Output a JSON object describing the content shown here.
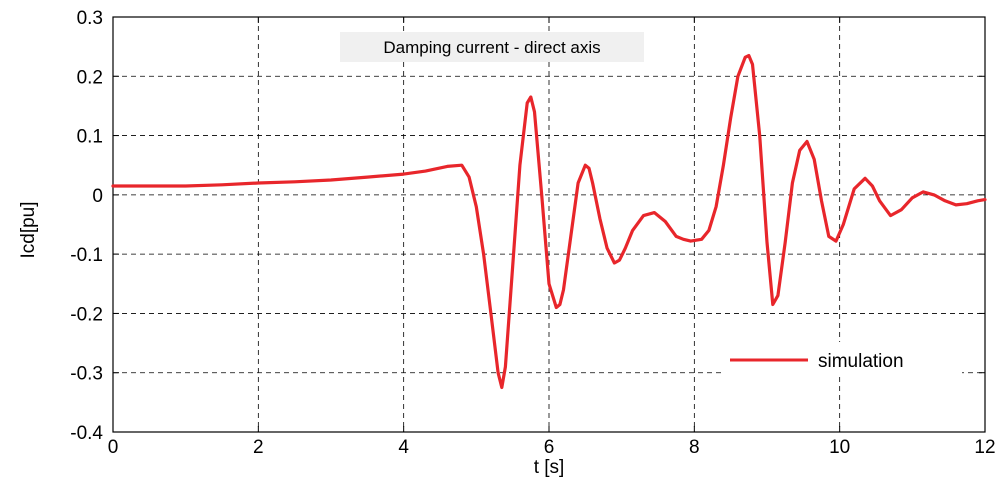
{
  "chart_data": {
    "type": "line",
    "title": "Damping current - direct axis",
    "xlabel": "t [s]",
    "ylabel": "Icd[pu]",
    "xlim": [
      0,
      12
    ],
    "ylim": [
      -0.4,
      0.3
    ],
    "xticks": [
      "0",
      "2",
      "4",
      "6",
      "8",
      "10",
      "12"
    ],
    "yticks": [
      "0.3",
      "0.2",
      "0.1",
      "0",
      "-0.1",
      "-0.2",
      "-0.3",
      "-0.4"
    ],
    "grid": true,
    "legend_position": "bottom-right",
    "series": [
      {
        "name": "simulation",
        "color": "#e8262b",
        "x": [
          0,
          0.5,
          1,
          1.5,
          2,
          2.5,
          3,
          3.5,
          4,
          4.3,
          4.6,
          4.8,
          4.9,
          5.0,
          5.1,
          5.2,
          5.3,
          5.35,
          5.4,
          5.5,
          5.6,
          5.7,
          5.75,
          5.8,
          5.9,
          6.0,
          6.1,
          6.15,
          6.2,
          6.3,
          6.4,
          6.5,
          6.55,
          6.6,
          6.7,
          6.8,
          6.9,
          6.97,
          7.05,
          7.15,
          7.3,
          7.45,
          7.6,
          7.75,
          7.85,
          7.95,
          8.1,
          8.2,
          8.3,
          8.4,
          8.5,
          8.6,
          8.7,
          8.75,
          8.8,
          8.9,
          9.0,
          9.08,
          9.15,
          9.25,
          9.35,
          9.45,
          9.55,
          9.65,
          9.75,
          9.85,
          9.95,
          10.05,
          10.2,
          10.35,
          10.45,
          10.55,
          10.7,
          10.85,
          11.0,
          11.15,
          11.3,
          11.45,
          11.6,
          11.75,
          11.9,
          12
        ],
        "y": [
          0.015,
          0.015,
          0.015,
          0.017,
          0.02,
          0.022,
          0.025,
          0.03,
          0.035,
          0.04,
          0.048,
          0.05,
          0.03,
          -0.02,
          -0.1,
          -0.2,
          -0.3,
          -0.325,
          -0.29,
          -0.12,
          0.05,
          0.155,
          0.165,
          0.14,
          0.0,
          -0.15,
          -0.19,
          -0.185,
          -0.16,
          -0.07,
          0.02,
          0.05,
          0.045,
          0.02,
          -0.04,
          -0.09,
          -0.115,
          -0.11,
          -0.09,
          -0.06,
          -0.035,
          -0.03,
          -0.045,
          -0.07,
          -0.075,
          -0.078,
          -0.075,
          -0.06,
          -0.02,
          0.05,
          0.13,
          0.2,
          0.232,
          0.235,
          0.22,
          0.1,
          -0.08,
          -0.185,
          -0.17,
          -0.08,
          0.02,
          0.075,
          0.09,
          0.06,
          -0.01,
          -0.07,
          -0.078,
          -0.05,
          0.01,
          0.028,
          0.015,
          -0.01,
          -0.035,
          -0.025,
          -0.005,
          0.005,
          0.0,
          -0.01,
          -0.017,
          -0.015,
          -0.01,
          -0.008
        ]
      }
    ]
  }
}
